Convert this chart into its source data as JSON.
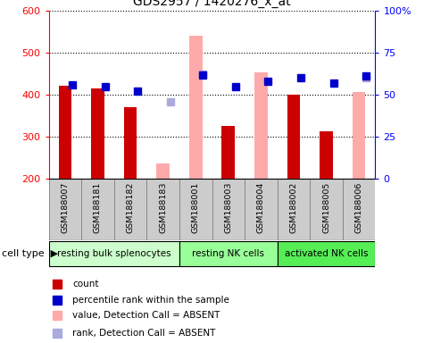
{
  "title": "GDS2957 / 1420276_x_at",
  "samples": [
    "GSM188007",
    "GSM188181",
    "GSM188182",
    "GSM188183",
    "GSM188001",
    "GSM188003",
    "GSM188004",
    "GSM188002",
    "GSM188005",
    "GSM188006"
  ],
  "cell_types": [
    {
      "label": "resting bulk splenocytes",
      "start": 0,
      "end": 4,
      "color": "#ccffcc"
    },
    {
      "label": "resting NK cells",
      "start": 4,
      "end": 7,
      "color": "#99ff99"
    },
    {
      "label": "activated NK cells",
      "start": 7,
      "end": 10,
      "color": "#55ee55"
    }
  ],
  "count_values": [
    420,
    415,
    370,
    null,
    null,
    325,
    null,
    400,
    312,
    null
  ],
  "count_color": "#cc0000",
  "absent_value_bars": [
    null,
    null,
    null,
    235,
    540,
    null,
    452,
    null,
    null,
    406
  ],
  "absent_value_color": "#ffaaaa",
  "percentile_rank": [
    422,
    418,
    408,
    null,
    445,
    418,
    432,
    440,
    427,
    443
  ],
  "percentile_rank_color": "#0000cc",
  "absent_rank": [
    null,
    null,
    null,
    382,
    447,
    null,
    null,
    null,
    null,
    440
  ],
  "absent_rank_color": "#aaaadd",
  "ylim": [
    200,
    600
  ],
  "yticks_left": [
    200,
    300,
    400,
    500,
    600
  ],
  "yticks_right": [
    0,
    25,
    50,
    75,
    100
  ],
  "legend_items": [
    {
      "label": "count",
      "color": "#cc0000"
    },
    {
      "label": "percentile rank within the sample",
      "color": "#0000cc"
    },
    {
      "label": "value, Detection Call = ABSENT",
      "color": "#ffaaaa"
    },
    {
      "label": "rank, Detection Call = ABSENT",
      "color": "#aaaadd"
    }
  ],
  "bar_width": 0.4,
  "marker_size": 6,
  "sample_bg_color": "#cccccc",
  "sample_edge_color": "#888888"
}
